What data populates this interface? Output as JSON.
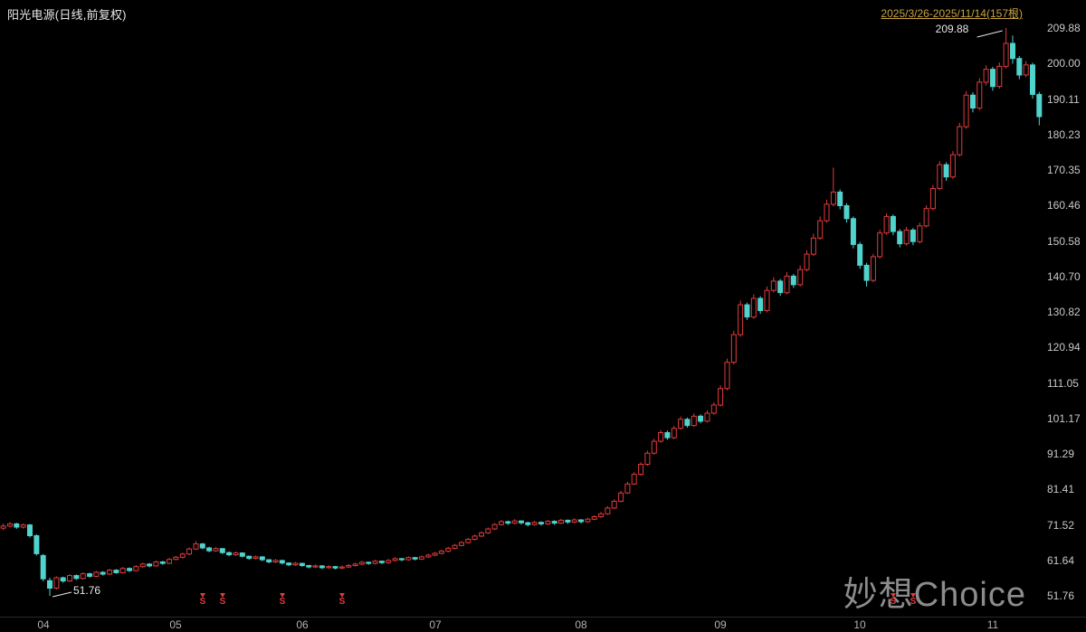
{
  "header": {
    "title": "阳光电源(日线,前复权)",
    "range": "2025/3/26-2025/11/14(157根)"
  },
  "watermark": {
    "text": "妙想Choice"
  },
  "colors": {
    "up": "#e03b3b",
    "down": "#50d2cd",
    "background": "#000000",
    "axis_text": "#c9c9c9",
    "range_text": "#c9a43f",
    "annotation_text": "#e8e8e8",
    "marker": "#e03b3b",
    "watermark": "#8c8c8c"
  },
  "chart_data": {
    "type": "candlestick",
    "title": "阳光电源(日线,前复权)",
    "date_range": "2025/3/26-2025/11/14",
    "bar_count": 157,
    "price_min": 51.76,
    "price_max": 209.88,
    "grid": false,
    "y_axis_labels": [
      "209.88",
      "200.00",
      "190.11",
      "180.23",
      "170.35",
      "160.46",
      "150.58",
      "140.70",
      "130.82",
      "120.94",
      "111.05",
      "101.17",
      "91.29",
      "81.41",
      "71.52",
      "61.64",
      "51.76"
    ],
    "x_axis_labels": [
      {
        "label": "04",
        "index": 6
      },
      {
        "label": "05",
        "index": 26
      },
      {
        "label": "06",
        "index": 45
      },
      {
        "label": "07",
        "index": 65
      },
      {
        "label": "08",
        "index": 87
      },
      {
        "label": "09",
        "index": 108
      },
      {
        "label": "10",
        "index": 129
      },
      {
        "label": "11",
        "index": 149
      }
    ],
    "annotations": [
      {
        "text": "209.88",
        "type": "high",
        "index": 151,
        "price": 209.88
      },
      {
        "text": "51.76",
        "type": "low",
        "index": 7,
        "price": 51.76
      }
    ],
    "sell_marks": {
      "label": "S",
      "indices": [
        30,
        33,
        42,
        51,
        134,
        137
      ]
    },
    "candles": [
      [
        70.6,
        71.9,
        70.0,
        71.2
      ],
      [
        71.2,
        72.3,
        70.8,
        71.8
      ],
      [
        71.8,
        72.1,
        70.4,
        70.9
      ],
      [
        70.9,
        71.9,
        70.5,
        71.5
      ],
      [
        71.5,
        71.8,
        68.0,
        68.5
      ],
      [
        68.5,
        68.9,
        63.0,
        63.5
      ],
      [
        63.0,
        63.4,
        55.8,
        56.5
      ],
      [
        56.0,
        56.8,
        51.76,
        53.9
      ],
      [
        53.9,
        57.2,
        53.5,
        56.8
      ],
      [
        56.8,
        57.1,
        55.4,
        55.9
      ],
      [
        55.9,
        57.8,
        55.6,
        57.4
      ],
      [
        57.4,
        57.7,
        56.2,
        56.6
      ],
      [
        56.6,
        58.3,
        56.3,
        57.9
      ],
      [
        57.9,
        58.2,
        56.8,
        57.2
      ],
      [
        57.2,
        58.7,
        57.0,
        58.3
      ],
      [
        58.3,
        58.6,
        57.4,
        57.8
      ],
      [
        57.8,
        59.3,
        57.5,
        58.9
      ],
      [
        58.9,
        59.2,
        57.9,
        58.2
      ],
      [
        58.2,
        59.8,
        58.0,
        59.4
      ],
      [
        59.4,
        59.7,
        58.4,
        58.8
      ],
      [
        58.8,
        60.3,
        58.6,
        59.9
      ],
      [
        59.9,
        61.0,
        59.6,
        60.6
      ],
      [
        60.6,
        60.9,
        59.7,
        60.1
      ],
      [
        60.1,
        61.6,
        59.9,
        61.2
      ],
      [
        61.2,
        61.5,
        60.4,
        60.8
      ],
      [
        60.8,
        62.3,
        60.6,
        61.9
      ],
      [
        61.9,
        62.9,
        61.6,
        62.5
      ],
      [
        62.5,
        63.8,
        62.2,
        63.4
      ],
      [
        63.4,
        65.2,
        63.1,
        64.8
      ],
      [
        64.8,
        67.0,
        64.5,
        66.2
      ],
      [
        66.2,
        66.5,
        64.7,
        65.1
      ],
      [
        65.1,
        65.4,
        63.9,
        64.3
      ],
      [
        64.3,
        65.3,
        64.0,
        64.9
      ],
      [
        64.9,
        65.1,
        63.4,
        63.8
      ],
      [
        63.8,
        64.1,
        62.8,
        63.2
      ],
      [
        63.2,
        64.1,
        62.9,
        63.7
      ],
      [
        63.7,
        63.9,
        62.4,
        62.8
      ],
      [
        62.8,
        63.0,
        61.8,
        62.2
      ],
      [
        62.2,
        63.0,
        61.9,
        62.6
      ],
      [
        62.6,
        62.8,
        61.4,
        61.8
      ],
      [
        61.8,
        62.0,
        60.8,
        61.2
      ],
      [
        61.2,
        62.0,
        60.9,
        61.6
      ],
      [
        61.6,
        61.8,
        60.5,
        60.9
      ],
      [
        60.9,
        61.1,
        60.0,
        60.4
      ],
      [
        60.4,
        61.2,
        60.1,
        60.8
      ],
      [
        60.8,
        61.0,
        59.8,
        60.2
      ],
      [
        60.2,
        60.4,
        59.4,
        59.8
      ],
      [
        59.8,
        60.5,
        59.5,
        60.1
      ],
      [
        60.1,
        60.3,
        59.2,
        59.6
      ],
      [
        59.6,
        60.3,
        59.3,
        59.9
      ],
      [
        59.9,
        60.1,
        59.1,
        59.5
      ],
      [
        59.5,
        60.2,
        59.2,
        59.8
      ],
      [
        59.8,
        60.6,
        59.5,
        60.2
      ],
      [
        60.2,
        61.0,
        59.9,
        60.6
      ],
      [
        60.6,
        61.5,
        60.3,
        61.1
      ],
      [
        61.1,
        61.3,
        60.4,
        60.8
      ],
      [
        60.8,
        61.8,
        60.5,
        61.4
      ],
      [
        61.4,
        61.6,
        60.6,
        61.0
      ],
      [
        61.0,
        62.0,
        60.7,
        61.6
      ],
      [
        61.6,
        62.5,
        61.3,
        62.1
      ],
      [
        62.1,
        62.3,
        61.4,
        61.8
      ],
      [
        61.8,
        62.8,
        61.5,
        62.4
      ],
      [
        62.4,
        62.6,
        61.6,
        62.0
      ],
      [
        62.0,
        63.0,
        61.7,
        62.6
      ],
      [
        62.6,
        63.5,
        62.3,
        63.1
      ],
      [
        63.1,
        64.0,
        62.8,
        63.6
      ],
      [
        63.6,
        64.6,
        63.3,
        64.2
      ],
      [
        64.2,
        65.4,
        63.9,
        65.0
      ],
      [
        65.0,
        66.2,
        64.7,
        65.8
      ],
      [
        65.8,
        67.0,
        65.5,
        66.6
      ],
      [
        66.6,
        67.9,
        66.3,
        67.5
      ],
      [
        67.5,
        68.8,
        67.2,
        68.4
      ],
      [
        68.4,
        69.7,
        68.1,
        69.3
      ],
      [
        69.3,
        70.8,
        69.0,
        70.4
      ],
      [
        70.4,
        72.0,
        70.1,
        71.6
      ],
      [
        71.6,
        72.9,
        71.3,
        72.4
      ],
      [
        72.4,
        72.7,
        71.5,
        72.0
      ],
      [
        72.0,
        73.1,
        71.7,
        72.6
      ],
      [
        72.6,
        72.8,
        71.6,
        72.1
      ],
      [
        72.1,
        72.4,
        71.1,
        71.6
      ],
      [
        71.6,
        72.6,
        71.3,
        72.2
      ],
      [
        72.2,
        72.5,
        71.3,
        71.8
      ],
      [
        71.8,
        72.9,
        71.5,
        72.5
      ],
      [
        72.5,
        72.8,
        71.5,
        72.0
      ],
      [
        72.0,
        73.2,
        71.7,
        72.8
      ],
      [
        72.8,
        73.0,
        71.8,
        72.3
      ],
      [
        72.3,
        73.4,
        72.0,
        72.9
      ],
      [
        72.9,
        73.1,
        71.9,
        72.4
      ],
      [
        72.4,
        73.5,
        72.1,
        73.1
      ],
      [
        73.1,
        74.2,
        72.8,
        73.8
      ],
      [
        73.8,
        75.1,
        73.5,
        74.6
      ],
      [
        74.6,
        76.7,
        74.3,
        76.2
      ],
      [
        76.2,
        78.6,
        75.9,
        78.1
      ],
      [
        78.1,
        81.0,
        77.8,
        80.4
      ],
      [
        80.4,
        83.5,
        80.1,
        82.9
      ],
      [
        82.9,
        86.2,
        82.6,
        85.6
      ],
      [
        85.6,
        89.0,
        85.2,
        88.4
      ],
      [
        88.4,
        92.2,
        88.0,
        91.5
      ],
      [
        91.5,
        95.5,
        91.1,
        94.8
      ],
      [
        94.8,
        97.9,
        94.4,
        97.2
      ],
      [
        97.2,
        97.8,
        95.2,
        95.8
      ],
      [
        95.8,
        99.1,
        95.4,
        98.4
      ],
      [
        98.4,
        101.7,
        98.0,
        100.9
      ],
      [
        100.9,
        101.4,
        98.6,
        99.2
      ],
      [
        99.2,
        102.6,
        98.8,
        101.8
      ],
      [
        101.8,
        102.3,
        99.8,
        100.4
      ],
      [
        100.4,
        103.4,
        100.0,
        102.6
      ],
      [
        102.6,
        105.7,
        102.2,
        104.9
      ],
      [
        104.9,
        110.4,
        104.5,
        109.5
      ],
      [
        109.5,
        117.8,
        109.0,
        116.8
      ],
      [
        116.8,
        125.6,
        116.2,
        124.5
      ],
      [
        124.5,
        134.0,
        123.9,
        132.8
      ],
      [
        132.8,
        133.4,
        128.6,
        129.4
      ],
      [
        129.4,
        135.7,
        128.9,
        134.6
      ],
      [
        134.6,
        135.2,
        130.3,
        131.2
      ],
      [
        131.2,
        137.9,
        130.7,
        136.8
      ],
      [
        136.8,
        140.5,
        136.2,
        139.4
      ],
      [
        139.4,
        140.0,
        135.3,
        136.2
      ],
      [
        136.2,
        141.9,
        135.7,
        140.8
      ],
      [
        140.8,
        141.4,
        137.5,
        138.4
      ],
      [
        138.4,
        143.7,
        137.9,
        142.6
      ],
      [
        142.6,
        148.0,
        142.1,
        146.9
      ],
      [
        146.9,
        152.6,
        146.4,
        151.4
      ],
      [
        151.4,
        157.4,
        150.9,
        156.2
      ],
      [
        156.2,
        162.1,
        155.7,
        160.8
      ],
      [
        160.8,
        171.0,
        160.2,
        164.2
      ],
      [
        164.2,
        164.9,
        159.4,
        160.4
      ],
      [
        160.4,
        161.1,
        155.7,
        156.8
      ],
      [
        156.8,
        157.4,
        148.5,
        149.6
      ],
      [
        149.6,
        150.3,
        142.8,
        143.8
      ],
      [
        143.8,
        144.5,
        137.9,
        139.6
      ],
      [
        139.6,
        147.0,
        139.1,
        146.2
      ],
      [
        146.2,
        153.7,
        145.7,
        152.8
      ],
      [
        152.8,
        158.3,
        152.3,
        157.4
      ],
      [
        157.4,
        158.0,
        152.2,
        153.2
      ],
      [
        153.2,
        153.9,
        148.8,
        149.8
      ],
      [
        149.8,
        154.5,
        149.3,
        153.6
      ],
      [
        153.6,
        154.2,
        149.4,
        150.4
      ],
      [
        150.4,
        155.7,
        149.9,
        154.8
      ],
      [
        154.8,
        160.5,
        154.3,
        159.6
      ],
      [
        159.6,
        166.2,
        159.1,
        165.2
      ],
      [
        165.2,
        172.8,
        164.7,
        171.8
      ],
      [
        171.8,
        172.5,
        167.3,
        168.4
      ],
      [
        168.4,
        175.6,
        167.9,
        174.6
      ],
      [
        174.6,
        183.5,
        174.1,
        182.4
      ],
      [
        182.4,
        192.3,
        181.8,
        191.2
      ],
      [
        191.2,
        192.0,
        186.4,
        187.6
      ],
      [
        187.6,
        195.9,
        187.0,
        194.8
      ],
      [
        194.8,
        199.5,
        193.9,
        198.4
      ],
      [
        198.4,
        199.1,
        192.4,
        193.6
      ],
      [
        193.6,
        200.3,
        193.0,
        199.2
      ],
      [
        199.2,
        209.88,
        198.6,
        205.6
      ],
      [
        205.6,
        207.8,
        199.9,
        201.4
      ],
      [
        201.4,
        202.1,
        195.6,
        196.8
      ],
      [
        196.8,
        200.7,
        196.2,
        199.6
      ],
      [
        199.6,
        200.2,
        190.2,
        191.4
      ],
      [
        191.4,
        192.1,
        182.8,
        185.2
      ]
    ]
  }
}
